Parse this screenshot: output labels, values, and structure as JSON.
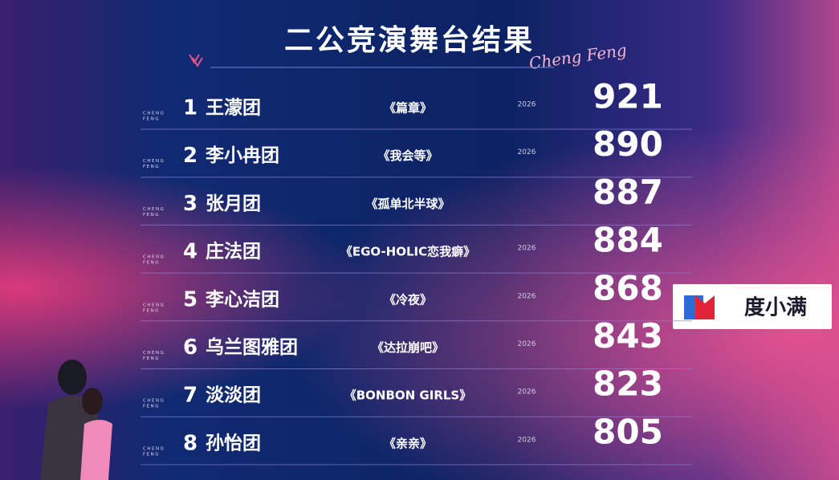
{
  "title": "二公竞演舞台结果",
  "signature": "Cheng Feng",
  "sponsor": "度小满",
  "row_tag": [
    "CHENG",
    "FENG"
  ],
  "rows": [
    {
      "rank": 1,
      "team": "王濛团",
      "song": "《篇章》",
      "year": "2026",
      "score": 921
    },
    {
      "rank": 2,
      "team": "李小冉团",
      "song": "《我会等》",
      "year": "2026",
      "score": 890
    },
    {
      "rank": 3,
      "team": "张月团",
      "song": "《孤单北半球》",
      "score": 887
    },
    {
      "rank": 4,
      "team": "庄法团",
      "song": "《EGO-HOLIC恋我癖》",
      "year": "2026",
      "score": 884
    },
    {
      "rank": 5,
      "team": "李心洁团",
      "song": "《冷夜》",
      "year": "2026",
      "score": 868
    },
    {
      "rank": 6,
      "team": "乌兰图雅团",
      "song": "《达拉崩吧》",
      "year": "2026",
      "score": 843
    },
    {
      "rank": 7,
      "team": "淡淡团",
      "song": "《BONBON GIRLS》",
      "year": "2026",
      "score": 823
    },
    {
      "rank": 8,
      "team": "孙怡团",
      "song": "《亲亲》",
      "year": "2026",
      "score": 805
    }
  ]
}
